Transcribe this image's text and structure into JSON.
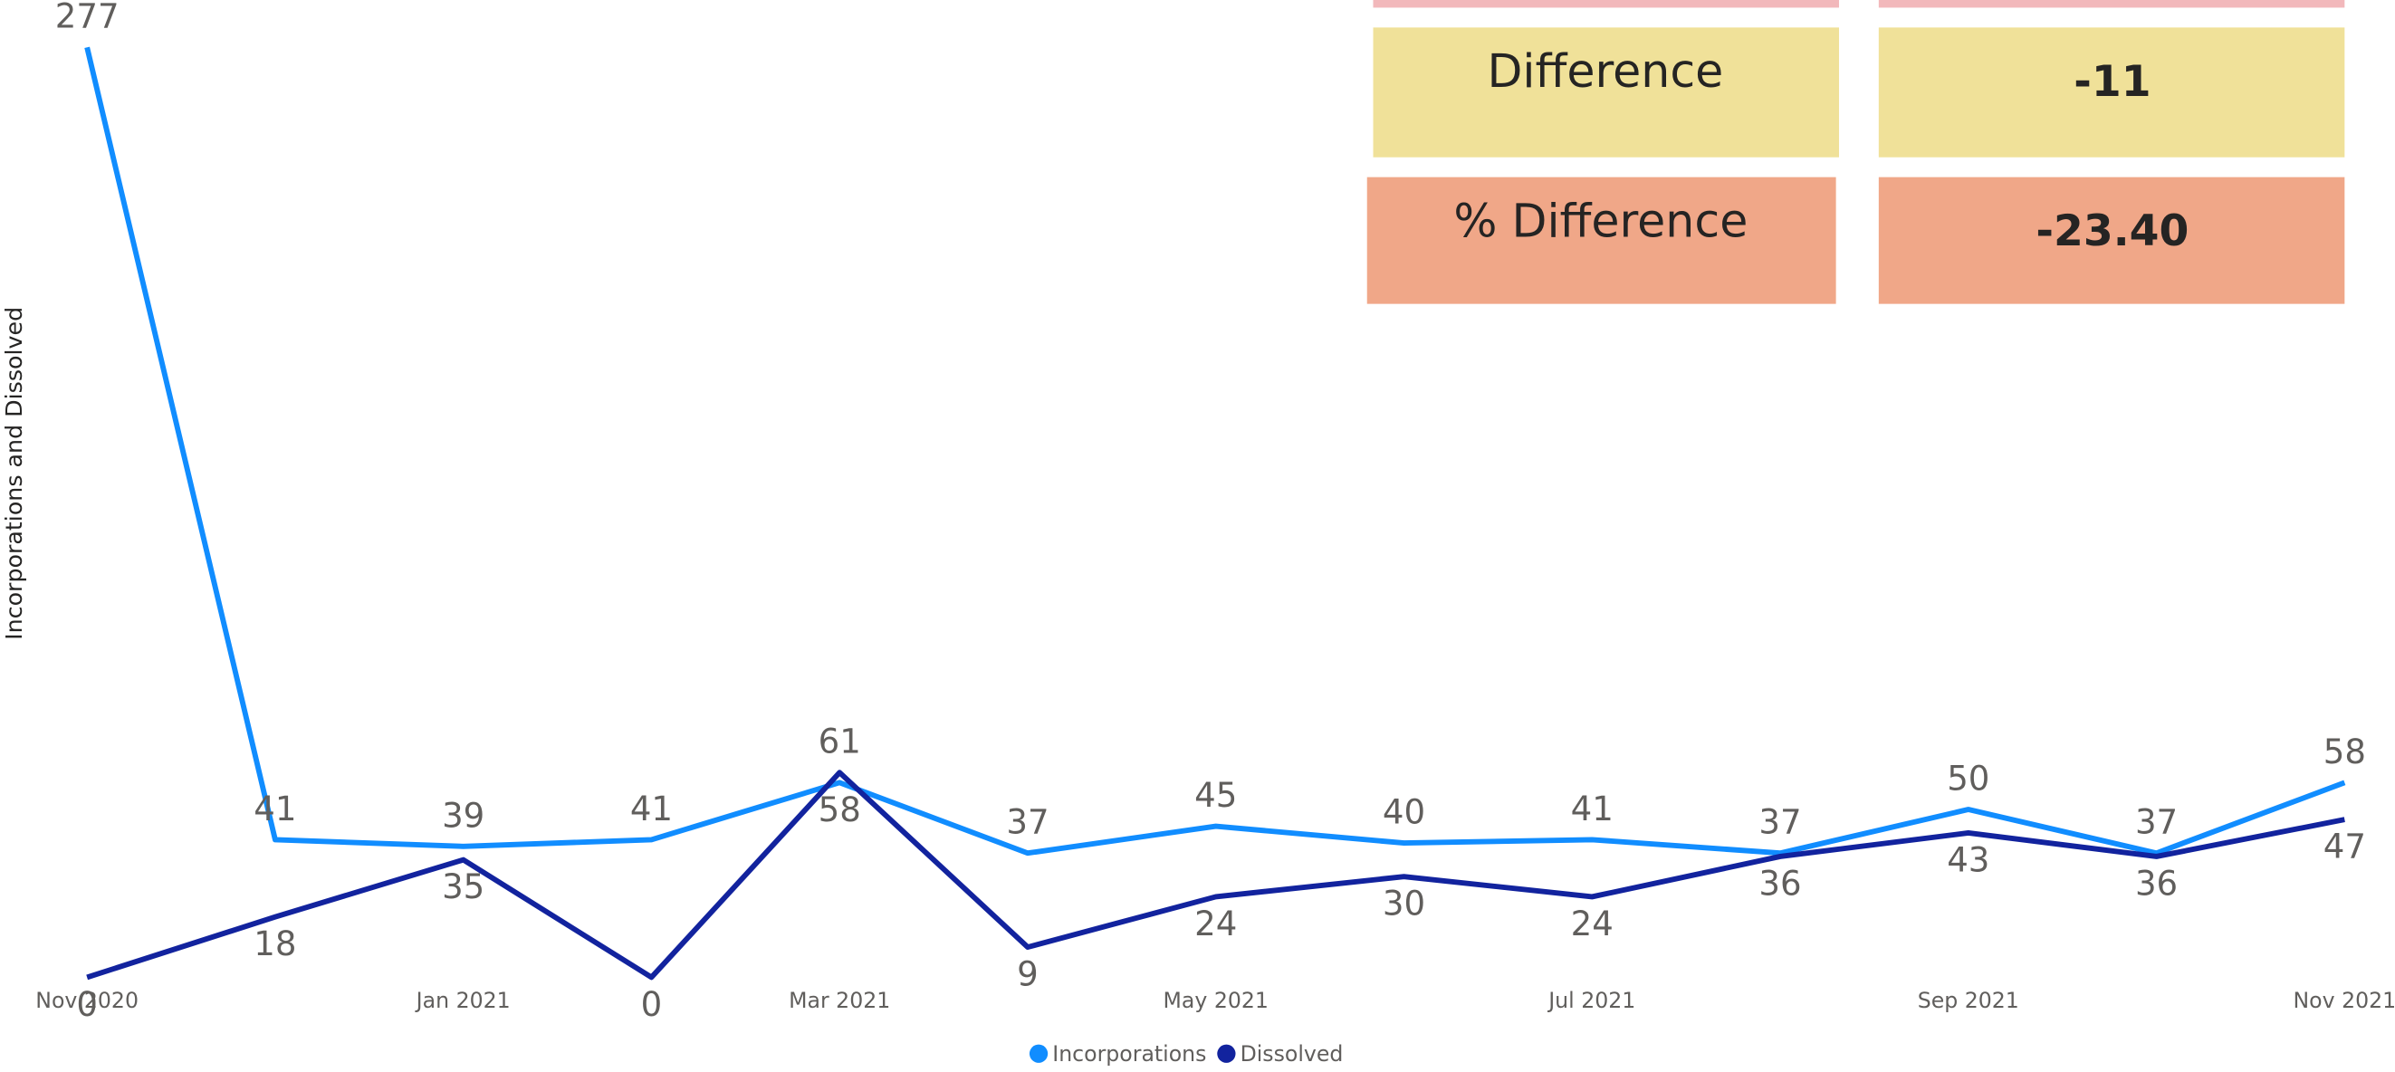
{
  "chart_data": {
    "type": "line",
    "y_axis_label": "Incorporations and Dissolved",
    "categories": [
      "Nov 2020",
      null,
      "Jan 2021",
      null,
      "Mar 2021",
      null,
      "May 2021",
      null,
      "Jul 2021",
      null,
      "Sep 2021",
      null,
      "Nov 2021"
    ],
    "series": [
      {
        "name": "Incorporations",
        "color": "#118DFF",
        "values": [
          277,
          41,
          39,
          41,
          58,
          37,
          45,
          40,
          41,
          37,
          50,
          37,
          58
        ]
      },
      {
        "name": "Dissolved",
        "color": "#12239E",
        "values": [
          0,
          18,
          35,
          0,
          61,
          9,
          24,
          30,
          24,
          36,
          43,
          36,
          47
        ]
      }
    ],
    "ylim": [
      0,
      277
    ]
  },
  "cards": [
    {
      "label": "Difference",
      "value": "-11"
    },
    {
      "label": "% Difference",
      "value": "-23.40"
    }
  ]
}
